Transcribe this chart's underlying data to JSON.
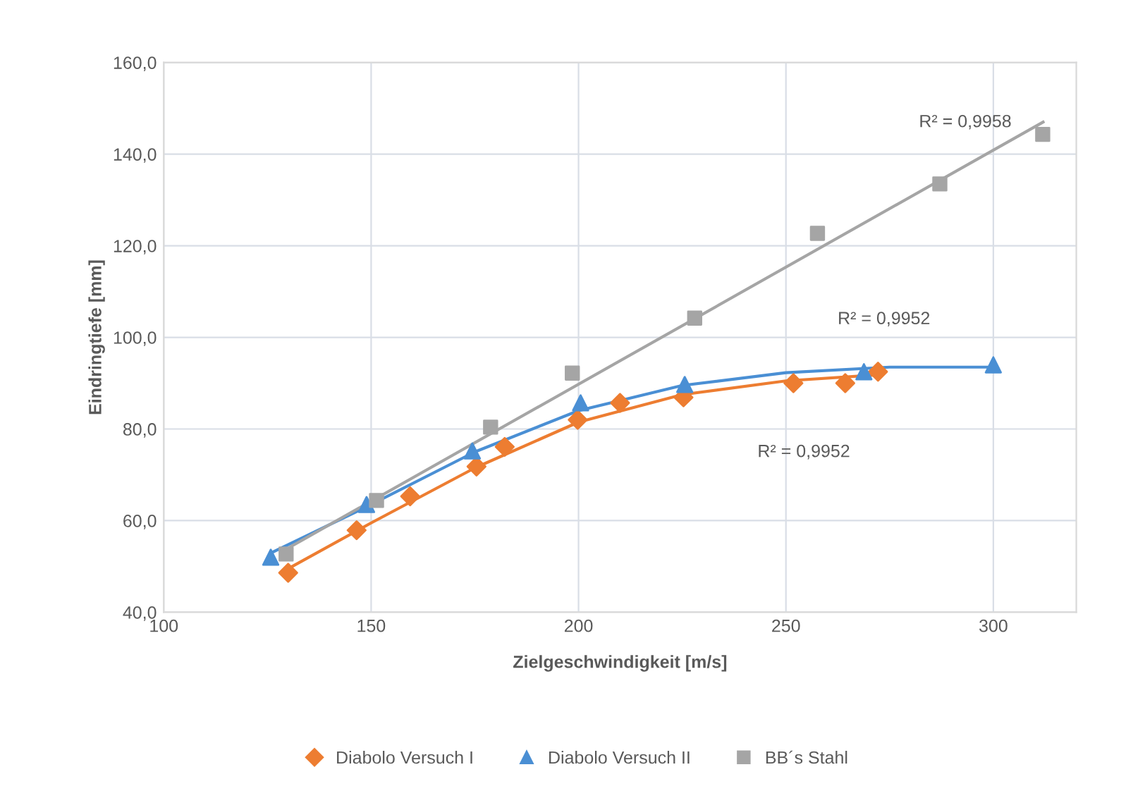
{
  "chart_data": {
    "type": "scatter",
    "xlabel": "Zielgeschwindigkeit [m/s]",
    "ylabel": "Eindringtiefe [mm]",
    "xlim": [
      100,
      320
    ],
    "ylim": [
      40,
      160
    ],
    "xticks": [
      100,
      150,
      200,
      250,
      300
    ],
    "yticks": [
      {
        "value": 40,
        "label": "40,0"
      },
      {
        "value": 60,
        "label": "60,0"
      },
      {
        "value": 80,
        "label": "80,0"
      },
      {
        "value": 100,
        "label": "100,0"
      },
      {
        "value": 120,
        "label": "120,0"
      },
      {
        "value": 140,
        "label": "140,0"
      },
      {
        "value": 160,
        "label": "160,0"
      }
    ],
    "grid": true,
    "legend": "bottom",
    "series": [
      {
        "name": "Diabolo Versuch I",
        "color": "#ed7d31",
        "marker": "diamond",
        "x": [
          130,
          146.5,
          159.4,
          175.4,
          182.2,
          199.8,
          210,
          225.3,
          251.8,
          264.3,
          272.2
        ],
        "values": [
          48.6,
          57.9,
          65.3,
          71.8,
          76.1,
          82.0,
          85.7,
          86.9,
          90.0,
          90.0,
          92.5
        ]
      },
      {
        "name": "Diabolo Versuch II",
        "color": "#4a8fd4",
        "marker": "triangle",
        "x": [
          125.8,
          148.9,
          174.4,
          200.5,
          225.6,
          268.8,
          300
        ],
        "values": [
          52.0,
          63.5,
          75.2,
          85.7,
          89.7,
          92.5,
          94.0
        ]
      },
      {
        "name": "BB´s Stahl",
        "color": "#a5a5a5",
        "marker": "square",
        "x": [
          129.5,
          151.3,
          178.8,
          198.5,
          228,
          257.6,
          287.1,
          311.9
        ],
        "values": [
          52.7,
          64.4,
          80.4,
          92.2,
          104.2,
          122.7,
          133.5,
          144.3
        ]
      },
      {
        "type": "line",
        "color": "#ed7d31",
        "x": [
          130,
          150,
          175,
          200,
          225,
          250,
          272
        ],
        "values": [
          49.5,
          59.5,
          71.5,
          81.5,
          87.5,
          90.5,
          91.8
        ]
      },
      {
        "type": "line",
        "color": "#4a8fd4",
        "x": [
          126,
          150,
          175,
          200,
          225,
          250,
          275,
          300
        ],
        "values": [
          53,
          63.5,
          75,
          84,
          89.5,
          92.3,
          93.5,
          93.5
        ]
      },
      {
        "type": "line",
        "color": "#a5a5a5",
        "x": [
          129,
          312
        ],
        "values": [
          53.5,
          147
        ]
      }
    ],
    "annotations": [
      "R² = 0,9958",
      "R² = 0,9952",
      "R² = 0,9952"
    ]
  }
}
